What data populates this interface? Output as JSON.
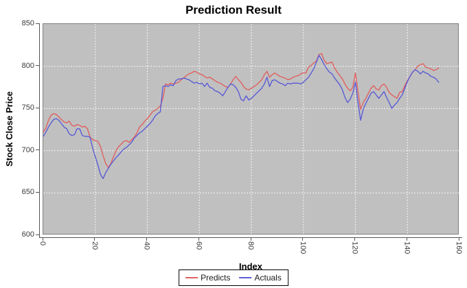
{
  "title": "Prediction Result",
  "chart_data": {
    "type": "line",
    "title": "Prediction Result",
    "xlabel": "Index",
    "ylabel": "Stock Close Price",
    "xlim": [
      0,
      160
    ],
    "ylim": [
      600,
      850
    ],
    "x_ticks": [
      0,
      20,
      40,
      60,
      80,
      100,
      120,
      140,
      160
    ],
    "y_ticks": [
      600,
      650,
      700,
      750,
      800,
      850
    ],
    "grid": true,
    "grid_color": "#ffffff",
    "plot_background": "#c0c0c0",
    "legend_position": "bottom-center",
    "x_start": 0,
    "x_step": 1,
    "series": [
      {
        "name": "Predicts",
        "color": "#e06060",
        "values": [
          722,
          727,
          736,
          742,
          744,
          743,
          740,
          737,
          734,
          733,
          735,
          730,
          729,
          731,
          730,
          728,
          729,
          726,
          716,
          713,
          712,
          711,
          705,
          694,
          685,
          680,
          685,
          693,
          700,
          705,
          708,
          711,
          712,
          710,
          713,
          716,
          721,
          728,
          731,
          735,
          738,
          742,
          746,
          748,
          750,
          753,
          762,
          779,
          778,
          780,
          779,
          780,
          781,
          784,
          786,
          789,
          791,
          792,
          794,
          793,
          791,
          790,
          788,
          786,
          787,
          785,
          783,
          781,
          780,
          778,
          776,
          775,
          779,
          784,
          788,
          784,
          781,
          776,
          773,
          772,
          774,
          776,
          778,
          781,
          784,
          790,
          794,
          787,
          790,
          792,
          790,
          788,
          787,
          786,
          784,
          785,
          787,
          788,
          789,
          791,
          792,
          792,
          799,
          801,
          804,
          806,
          814,
          815,
          807,
          803,
          804,
          805,
          798,
          793,
          789,
          785,
          779,
          774,
          771,
          775,
          792,
          770,
          749,
          757,
          762,
          768,
          774,
          777,
          773,
          772,
          777,
          779,
          775,
          769,
          766,
          764,
          762,
          769,
          770,
          777,
          783,
          788,
          793,
          796,
          800,
          802,
          803,
          799,
          798,
          797,
          795,
          796,
          798
        ]
      },
      {
        "name": "Actuals",
        "color": "#5c5cd6",
        "values": [
          717,
          722,
          728,
          733,
          737,
          738,
          736,
          732,
          728,
          726,
          720,
          718,
          719,
          726,
          726,
          718,
          717,
          717,
          716,
          703,
          693,
          683,
          672,
          667,
          674,
          679,
          684,
          688,
          692,
          695,
          699,
          702,
          704,
          707,
          710,
          715,
          718,
          721,
          723,
          726,
          729,
          732,
          736,
          741,
          744,
          746,
          776,
          777,
          776,
          778,
          777,
          783,
          785,
          785,
          786,
          785,
          784,
          782,
          780,
          781,
          779,
          780,
          776,
          780,
          775,
          774,
          771,
          770,
          768,
          765,
          770,
          775,
          779,
          778,
          775,
          770,
          761,
          759,
          765,
          760,
          762,
          765,
          768,
          771,
          774,
          779,
          787,
          776,
          783,
          784,
          782,
          780,
          779,
          777,
          780,
          779,
          780,
          780,
          780,
          779,
          781,
          784,
          787,
          792,
          797,
          805,
          813,
          808,
          802,
          797,
          793,
          791,
          786,
          782,
          778,
          772,
          763,
          757,
          761,
          768,
          781,
          757,
          736,
          749,
          756,
          762,
          768,
          770,
          766,
          762,
          766,
          770,
          763,
          757,
          750,
          754,
          757,
          762,
          766,
          774,
          782,
          788,
          793,
          796,
          794,
          791,
          794,
          792,
          791,
          788,
          787,
          785,
          781
        ]
      }
    ]
  }
}
